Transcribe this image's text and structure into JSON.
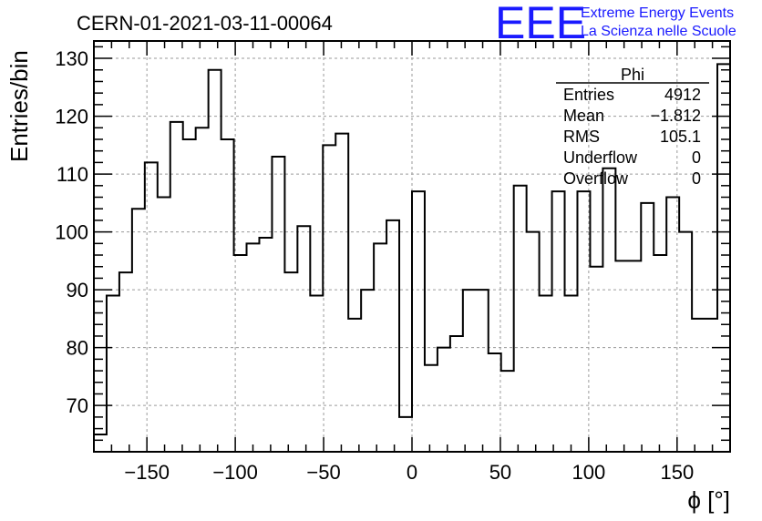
{
  "header": {
    "run_title": "CERN-01-2021-03-11-00064",
    "logo_text": "EEE",
    "logo_line1": "Extreme Energy Events",
    "logo_line2": "La Scienza nelle Scuole"
  },
  "stats_box": {
    "title": "Phi",
    "rows": [
      {
        "label": "Entries",
        "value": "4912"
      },
      {
        "label": "Mean",
        "value": "−1.812"
      },
      {
        "label": "RMS",
        "value": "105.1"
      },
      {
        "label": "Underflow",
        "value": "0"
      },
      {
        "label": "Overflow",
        "value": "0"
      }
    ]
  },
  "colors": {
    "grid": "#9a9a9a",
    "line": "#000000",
    "logo": "#1a1aff"
  },
  "chart_data": {
    "type": "histogram",
    "title": "CERN-01-2021-03-11-00064",
    "xlabel": "ϕ [°]",
    "ylabel": "Entries/bin",
    "xlim": [
      -180,
      180
    ],
    "ylim": [
      62,
      133
    ],
    "x_ticks": [
      -150,
      -100,
      -50,
      0,
      50,
      100,
      150
    ],
    "x_tick_labels": [
      "−150",
      "−100",
      "−50",
      "0",
      "50",
      "100",
      "150"
    ],
    "y_ticks": [
      70,
      80,
      90,
      100,
      110,
      120,
      130
    ],
    "y_tick_labels": [
      "70",
      "80",
      "90",
      "100",
      "110",
      "120",
      "130"
    ],
    "grid": true,
    "bin_edges_start": -180,
    "bin_width": 7.2,
    "values": [
      65,
      89,
      93,
      104,
      112,
      106,
      119,
      116,
      118,
      128,
      116,
      96,
      98,
      99,
      113,
      93,
      101,
      89,
      115,
      117,
      85,
      90,
      98,
      102,
      68,
      107,
      77,
      80,
      82,
      90,
      90,
      79,
      76,
      108,
      100,
      89,
      107,
      89,
      107,
      94,
      111,
      95,
      95,
      105,
      96,
      106,
      100,
      85,
      85,
      129
    ]
  }
}
